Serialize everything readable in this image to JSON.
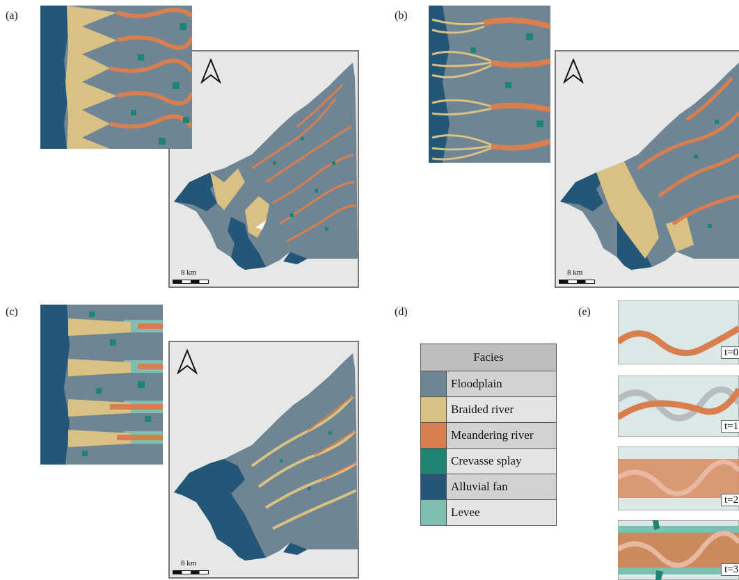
{
  "panel_labels": {
    "a": "(a)",
    "b": "(b)",
    "c": "(c)",
    "d": "(d)",
    "e": "(e)"
  },
  "scale_label": "8 km",
  "legend": {
    "title": "Facies",
    "items": [
      {
        "label": "Floodplain",
        "color": "#6f8593"
      },
      {
        "label": "Braided river",
        "color": "#d8c182"
      },
      {
        "label": "Meandering river",
        "color": "#d97f4f"
      },
      {
        "label": "Crevasse splay",
        "color": "#1f8471"
      },
      {
        "label": "Alluvial fan",
        "color": "#245677"
      },
      {
        "label": "Levee",
        "color": "#7fbfb3"
      }
    ]
  },
  "time_steps": [
    "t=0",
    "t=1",
    "t=2",
    "t=3"
  ],
  "colors": {
    "floodplain": "#6f8593",
    "braided": "#d8c182",
    "meander": "#d97f4f",
    "splay": "#1f8471",
    "fan": "#245677",
    "levee": "#7fbfb3",
    "map_bg": "#e6e8e8",
    "panel_bg": "#dbe8e8",
    "grey_river": "#b8bcbc"
  },
  "icons": {
    "north_arrow": "north-arrow-icon"
  }
}
